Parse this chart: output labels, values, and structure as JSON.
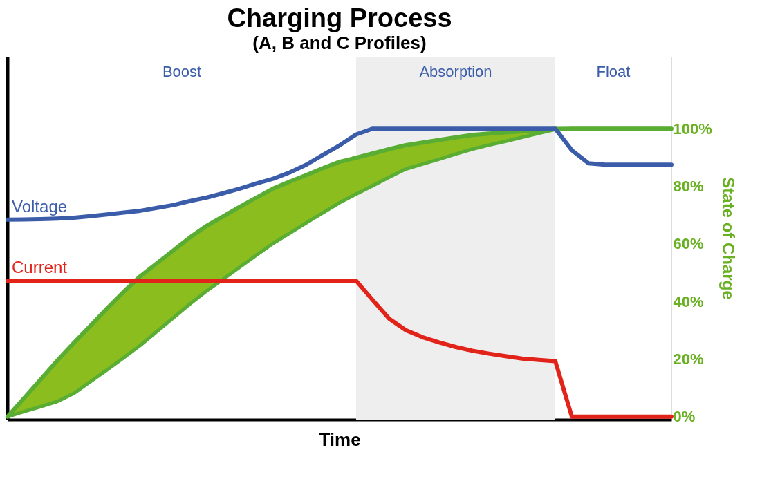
{
  "chart_data": {
    "type": "line",
    "title": "Charging Process",
    "subtitle": "(A, B and C Profiles)",
    "xlabel": "Time",
    "ylabel": "State of Charge",
    "categories": [
      null,
      null,
      null,
      null,
      null,
      null,
      null,
      null,
      null,
      null,
      null,
      null,
      null,
      null,
      null,
      null,
      null,
      null,
      null,
      null,
      null,
      null,
      null,
      null,
      null,
      null,
      null,
      null,
      null,
      null,
      null,
      null,
      null,
      null,
      null,
      null,
      null,
      null,
      null,
      null,
      null
    ],
    "ylim": [
      -1,
      125
    ],
    "yticks": [
      {
        "value": 0,
        "label": "0%"
      },
      {
        "value": 20,
        "label": "20%"
      },
      {
        "value": 40,
        "label": "40%"
      },
      {
        "value": 60,
        "label": "60%"
      },
      {
        "value": 80,
        "label": "80%"
      },
      {
        "value": 100,
        "label": "100%"
      }
    ],
    "grid": false,
    "line_style": "solid",
    "marker": "none",
    "series": [
      {
        "name": "Voltage",
        "color": "#3a5ca9",
        "values": [
          68.4,
          68.5,
          68.6,
          68.8,
          69.1,
          69.6,
          70.2,
          70.9,
          71.5,
          72.5,
          73.5,
          74.9,
          76.1,
          77.6,
          79.2,
          81.0,
          82.6,
          84.8,
          87.5,
          90.9,
          94.2,
          98.0,
          100,
          100,
          100,
          100,
          100,
          100,
          100,
          100,
          100,
          100,
          100,
          100,
          92.5,
          88.0,
          87.5,
          87.5,
          87.5,
          87.5,
          87.5
        ]
      },
      {
        "name": "Current",
        "color": "#e2231a",
        "values": [
          47.2,
          47.2,
          47.2,
          47.2,
          47.2,
          47.2,
          47.2,
          47.2,
          47.2,
          47.2,
          47.2,
          47.2,
          47.2,
          47.2,
          47.2,
          47.2,
          47.2,
          47.2,
          47.2,
          47.2,
          47.2,
          47.2,
          40.5,
          34.0,
          30.0,
          27.6,
          25.8,
          24.2,
          22.9,
          21.9,
          21.0,
          20.2,
          19.7,
          19.3,
          0,
          0,
          0,
          0,
          0,
          0,
          0
        ]
      },
      {
        "color": "#5aad33",
        "values": [
          0,
          6.5,
          13.0,
          19.5,
          25.7,
          31.6,
          37.6,
          43.4,
          48.8,
          53.3,
          57.8,
          62.3,
          66.3,
          69.6,
          72.9,
          76.1,
          79.2,
          81.6,
          83.9,
          86.3,
          88.5,
          89.9,
          91.4,
          92.9,
          94.3,
          95.2,
          96.1,
          97.0,
          97.8,
          98.3,
          98.7,
          99.1,
          99.5,
          99.9,
          100,
          100,
          100,
          100,
          100,
          100,
          100
        ],
        "upper": [
          0,
          6.5,
          13.0,
          19.5,
          25.7,
          31.6,
          37.6,
          43.4,
          48.8,
          53.3,
          57.8,
          62.3,
          66.3,
          69.6,
          72.9,
          76.1,
          79.2,
          81.6,
          83.9,
          86.3,
          88.5,
          89.9,
          91.4,
          92.9,
          94.3,
          95.2,
          96.1,
          97.0,
          97.8,
          98.3,
          98.7,
          99.1,
          99.5,
          99.9,
          100,
          100,
          100,
          100,
          100,
          100,
          100
        ],
        "lower": [
          0,
          1.8,
          3.5,
          5.3,
          8.1,
          12.2,
          16.3,
          20.5,
          24.8,
          29.6,
          34.4,
          39.2,
          43.7,
          47.8,
          52.0,
          56.1,
          60.2,
          63.7,
          67.3,
          70.8,
          74.3,
          77.3,
          80.2,
          83.2,
          86.0,
          87.7,
          89.4,
          91.2,
          92.9,
          94.3,
          95.6,
          97.0,
          98.4,
          99.7,
          100,
          100,
          100,
          100,
          100,
          100,
          100
        ]
      }
    ],
    "annotations": [
      "Boost",
      "Absorption",
      "Float"
    ]
  }
}
